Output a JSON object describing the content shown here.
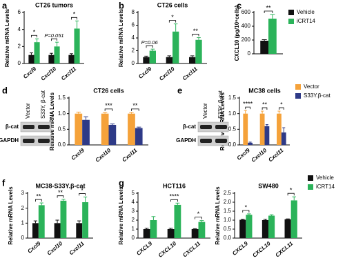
{
  "chart_data": [
    {
      "type": "bar",
      "panel": "a",
      "title": "CT26 tumors",
      "y_label": "Relative mRNA Levels",
      "categories": [
        "Cxcl9",
        "Cxcl10",
        "Cxcl11"
      ],
      "series": [
        {
          "name": "Vehicle",
          "color": "#111111",
          "values": [
            1,
            1,
            1
          ],
          "errors": [
            0.25,
            0.2,
            0.15
          ]
        },
        {
          "name": "iCRT14",
          "color": "#2bb35a",
          "values": [
            2.5,
            2.0,
            4.1
          ],
          "errors": [
            0.4,
            0.5,
            0.9
          ]
        }
      ],
      "significance": [
        "*",
        "P=0.051",
        "*"
      ],
      "ylim": [
        0,
        6
      ],
      "yticks": [
        0,
        2,
        4,
        6
      ],
      "legend": false
    },
    {
      "type": "bar",
      "panel": "b",
      "title": "CT26 cells",
      "y_label": "Relative mRNA Levels",
      "categories": [
        "Cxcl9",
        "Cxcl10",
        "Cxcl11"
      ],
      "series": [
        {
          "name": "Vehicle",
          "color": "#111111",
          "values": [
            1,
            1,
            1
          ],
          "errors": [
            0.15,
            0.2,
            0.2
          ]
        },
        {
          "name": "iCRT14",
          "color": "#2bb35a",
          "values": [
            2.0,
            5.0,
            3.7
          ],
          "errors": [
            0.25,
            1.2,
            0.35
          ]
        }
      ],
      "significance": [
        "P=0.06",
        "*",
        "**"
      ],
      "ylim": [
        0,
        8
      ],
      "yticks": [
        0,
        2,
        4,
        6,
        8
      ],
      "legend": false
    },
    {
      "type": "bar",
      "panel": "c",
      "y_label": "CXCL10 (pg/10⁶cells)",
      "categories": [
        null
      ],
      "series": [
        {
          "name": "Vehicle",
          "color": "#111111",
          "values": [
            190
          ],
          "errors": [
            15
          ]
        },
        {
          "name": "iCRT14",
          "color": "#2bb35a",
          "values": [
            510
          ],
          "errors": [
            60
          ]
        }
      ],
      "significance": [
        "**"
      ],
      "ylim": [
        0,
        600
      ],
      "yticks": [
        0,
        200,
        400,
        600
      ],
      "legend": true
    },
    {
      "type": "bar",
      "panel": "d",
      "title": "CT26 cells",
      "y_label": "Relative mRNA Levels",
      "blot": {
        "lanes": [
          "Vector",
          "S33Y, β-cat"
        ],
        "rows": [
          "β-cat",
          "GAPDH"
        ]
      },
      "categories": [
        "Cxcl9",
        "Cxcl10",
        "Cxcl11"
      ],
      "series": [
        {
          "name": "Vector",
          "color": "#f5a23a",
          "values": [
            1.0,
            1.0,
            1.0
          ],
          "errors": [
            0.05,
            0.04,
            0.04
          ]
        },
        {
          "name": "S33Y.β-cat",
          "color": "#2e3a87",
          "values": [
            0.8,
            0.64,
            0.54
          ],
          "errors": [
            0.1,
            0.03,
            0.03
          ]
        }
      ],
      "significance": [
        null,
        "***",
        "**"
      ],
      "ylim": [
        0,
        1.5
      ],
      "yticks": [
        {
          "value": 0,
          "label": "0.0"
        },
        0.5,
        {
          "value": 1,
          "label": "1.0"
        },
        1.5
      ],
      "legend": false
    },
    {
      "type": "bar",
      "panel": "e",
      "title": "MC38 cells",
      "y_label": "Relative mRNA Levels",
      "blot": {
        "lanes": [
          "Vector",
          "S33Y, β-cat"
        ],
        "rows": [
          "β-cat",
          "GAPDH"
        ]
      },
      "categories": [
        "Cxcl9",
        "Cxcl10",
        "Cxcl11"
      ],
      "series": [
        {
          "name": "Vector",
          "color": "#f5a23a",
          "values": [
            1.0,
            1.0,
            1.0
          ],
          "errors": [
            0.1,
            0.08,
            0.08
          ]
        },
        {
          "name": "S33Y.β-cat",
          "color": "#2e3a87",
          "values": [
            0.07,
            0.6,
            0.4
          ],
          "errors": [
            0.02,
            0.05,
            0.15
          ]
        }
      ],
      "significance": [
        "****",
        "**",
        "*"
      ],
      "ylim": [
        0,
        1.5
      ],
      "yticks": [
        {
          "value": 0,
          "label": "0.0"
        },
        0.5,
        {
          "value": 1,
          "label": "1.0"
        },
        1.5
      ],
      "legend": true
    },
    {
      "type": "bar",
      "panel": "f",
      "title": "MC38-S33Y.β-cat",
      "y_label": "Relative mRNA Levels",
      "categories": [
        "Cxcl9",
        "Cxcl10",
        "Cxcl11"
      ],
      "series": [
        {
          "name": "Vehicle",
          "color": "#111111",
          "values": [
            1,
            1,
            1
          ],
          "errors": [
            0.15,
            0.2,
            0.15
          ]
        },
        {
          "name": "iCRT14",
          "color": "#2bb35a",
          "values": [
            2.2,
            2.5,
            2.4
          ],
          "errors": [
            0.15,
            0.1,
            0.35
          ]
        }
      ],
      "significance": [
        "**",
        "**",
        "*"
      ],
      "ylim": [
        0,
        3
      ],
      "yticks": [
        0,
        1,
        2,
        3
      ],
      "legend": false
    },
    {
      "type": "bar",
      "panel": "g",
      "title": "HCT116",
      "y_label": "Relative mRNA Levels",
      "categories": [
        "CXCL9",
        "CXCL10",
        "CXCL11"
      ],
      "series": [
        {
          "name": "Vehicle",
          "color": "#111111",
          "values": [
            1,
            1,
            1
          ],
          "errors": [
            0.1,
            0.1,
            0.05
          ]
        },
        {
          "name": "iCRT14",
          "color": "#2bb35a",
          "values": [
            2.0,
            3.7,
            1.8
          ],
          "errors": [
            0.4,
            0.2,
            0.15
          ]
        }
      ],
      "significance": [
        null,
        "****",
        "*"
      ],
      "ylim": [
        0,
        5
      ],
      "yticks": [
        0,
        1,
        2,
        3,
        4,
        5
      ],
      "legend": false
    },
    {
      "type": "bar",
      "title": "SW480",
      "y_label": "Relative mRNA Levels",
      "categories": [
        "CXCL9",
        "CXCL10",
        "CXCL11"
      ],
      "series": [
        {
          "name": "Vehicle",
          "color": "#111111",
          "values": [
            1.02,
            1.0,
            1.05
          ],
          "errors": [
            0.03,
            0.05,
            0.02
          ]
        },
        {
          "name": "iCRT14",
          "color": "#2bb35a",
          "values": [
            1.3,
            1.25,
            2.1
          ],
          "errors": [
            0.05,
            0.05,
            0.2
          ]
        }
      ],
      "significance": [
        "*",
        null,
        "*"
      ],
      "ylim": [
        0,
        2.5
      ],
      "yticks": [
        {
          "value": 0,
          "label": "0.0"
        },
        0.5,
        {
          "value": 1,
          "label": "1.0"
        },
        1.5,
        {
          "value": 2,
          "label": "2.0"
        },
        2.5
      ],
      "legend": true
    }
  ]
}
